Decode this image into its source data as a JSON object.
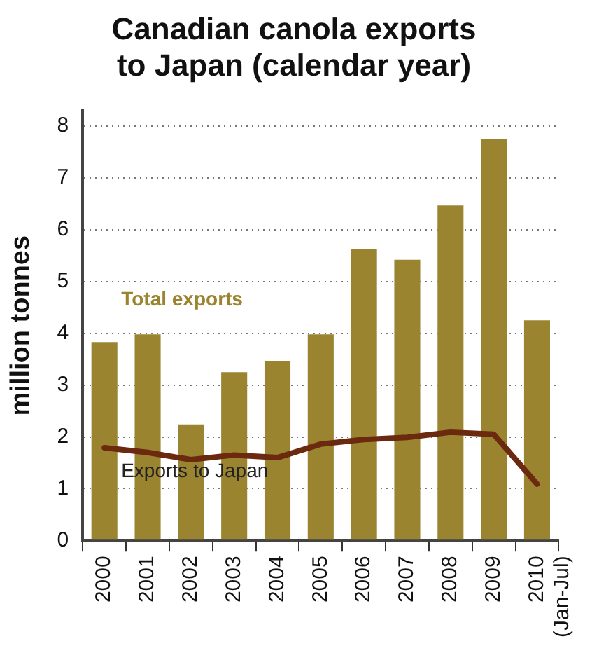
{
  "chart_data": {
    "type": "bar",
    "title": "Canadian canola exports to Japan (calendar year)",
    "ylabel": "million tonnes",
    "categories": [
      "2000",
      "2001",
      "2002",
      "2003",
      "2004",
      "2005",
      "2006",
      "2007",
      "2008",
      "2009",
      "2010\n(Jan-Jul)"
    ],
    "series": [
      {
        "name": "Total exports",
        "color": "#9a8430",
        "values": [
          3.83,
          3.98,
          2.24,
          3.25,
          3.47,
          3.98,
          5.62,
          5.42,
          6.47,
          7.75,
          4.25
        ]
      },
      {
        "name": "Exports to Japan",
        "type": "line",
        "color": "#6b2a10",
        "values": [
          1.79,
          1.7,
          1.56,
          1.65,
          1.6,
          1.86,
          1.95,
          1.99,
          2.09,
          2.05,
          1.09
        ]
      }
    ],
    "ylim": [
      0,
      8.3
    ],
    "yticks": [
      0,
      1,
      2,
      3,
      4,
      5,
      6,
      7,
      8
    ],
    "grid": "y",
    "legend": false
  }
}
